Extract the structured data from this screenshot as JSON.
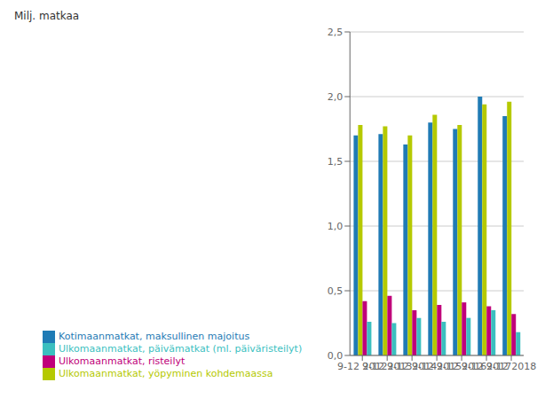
{
  "chart_data": {
    "type": "bar",
    "ylabel": "Milj.  matkaa",
    "categories": [
      "9-12 2012",
      "9-12 2013",
      "9-12 2014",
      "9-12 2015",
      "9-12 2016",
      "9-12 2017",
      "9-12 2018"
    ],
    "series": [
      {
        "name": "Kotimaanmatkat, maksullinen majoitus",
        "color": "#1f7bb5",
        "values": [
          1.7,
          1.71,
          1.63,
          1.8,
          1.75,
          2.0,
          1.85
        ]
      },
      {
        "name": "Ulkomaanmatkat, yöpyminen kohdemaassa",
        "color": "#b5c900",
        "values": [
          1.78,
          1.77,
          1.7,
          1.86,
          1.78,
          1.94,
          1.96
        ]
      },
      {
        "name": "Ulkomaanmatkat, risteilyt",
        "color": "#c0007a",
        "values": [
          0.42,
          0.46,
          0.35,
          0.39,
          0.41,
          0.38,
          0.32
        ]
      },
      {
        "name": "Ulkomaanmatkat, päivämatkat (ml. päiväristeilyt)",
        "color": "#3bbfbf",
        "values": [
          0.26,
          0.25,
          0.29,
          0.26,
          0.29,
          0.35,
          0.18
        ]
      }
    ],
    "ylim": [
      0,
      2.5
    ],
    "yticks": [
      {
        "value": 0.0,
        "label": "0,0"
      },
      {
        "value": 0.5,
        "label": "0,5"
      },
      {
        "value": 1.0,
        "label": "1,0"
      },
      {
        "value": 1.5,
        "label": "1,5"
      },
      {
        "value": 2.0,
        "label": "2,0"
      },
      {
        "value": 2.5,
        "label": "2,5"
      }
    ],
    "grid": true,
    "legend": "bottom"
  }
}
